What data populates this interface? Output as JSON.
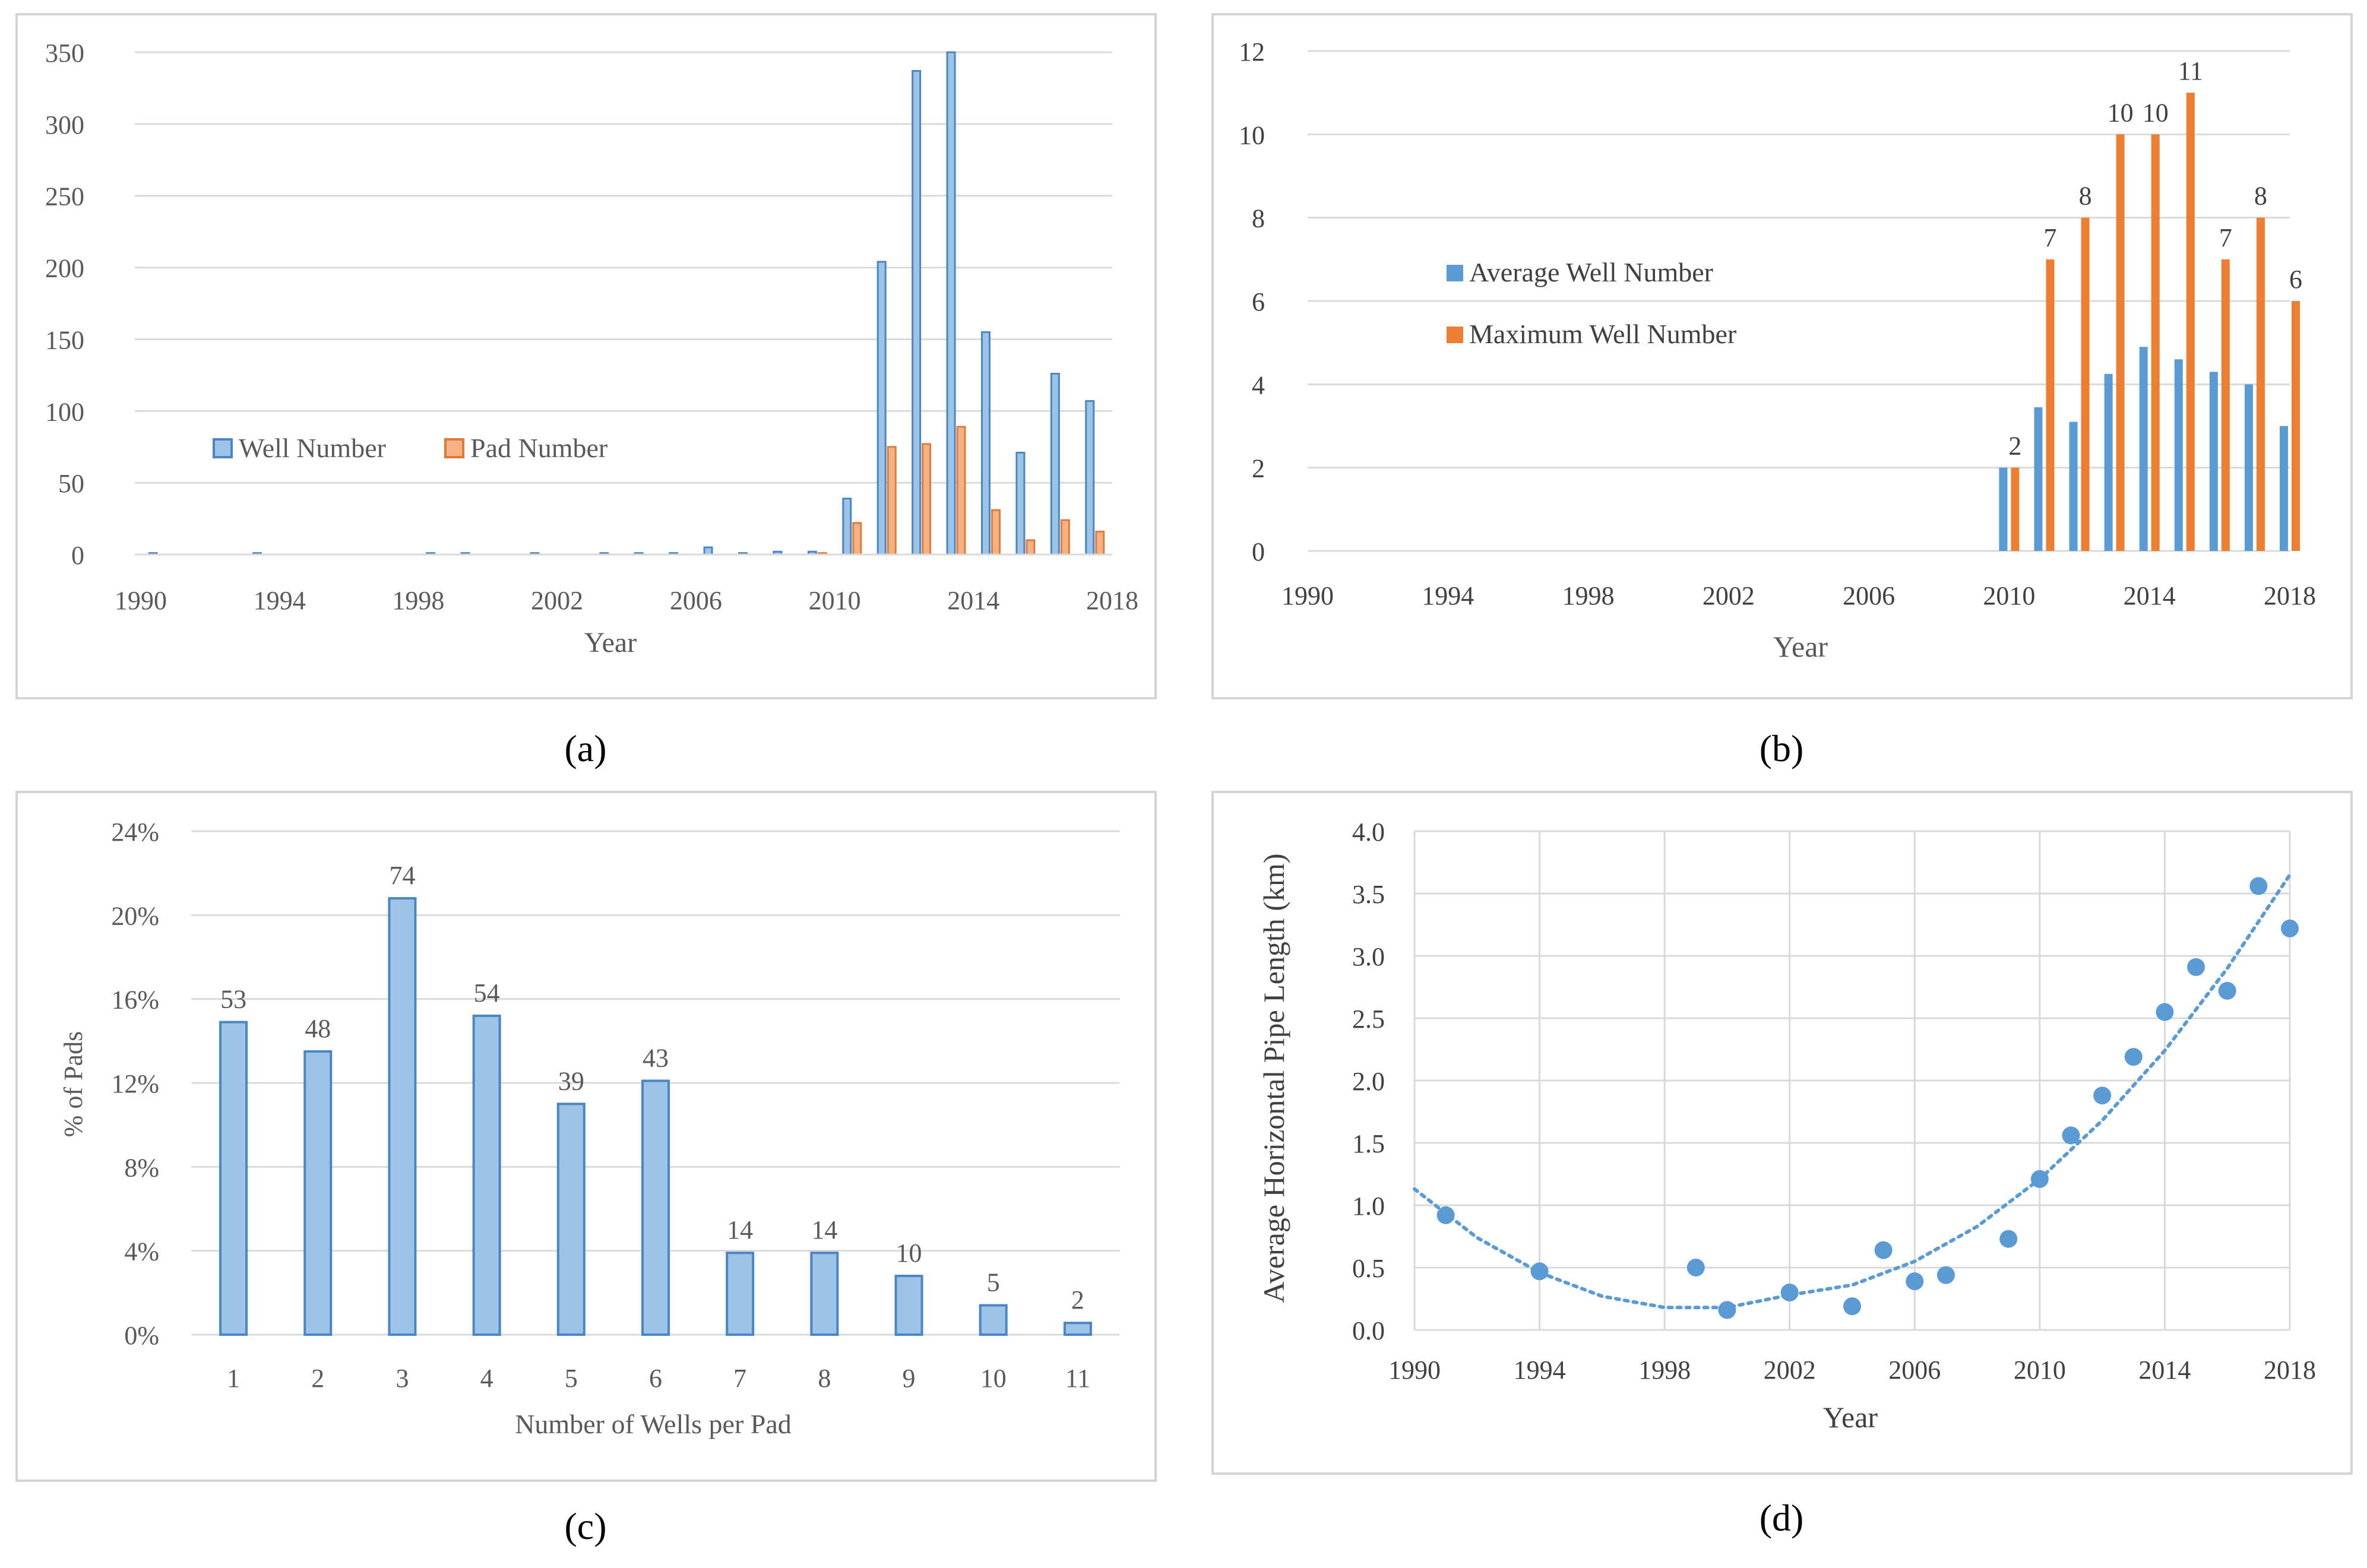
{
  "panel_labels": [
    "(a)",
    "(b)",
    "(c)",
    "(d)"
  ],
  "colors": {
    "blue_fill": "#9dc3e6",
    "blue_edge": "#4a86c5",
    "orange_fill": "#f4b183",
    "orange_edge": "#e07b39",
    "blue_solid": "#5b9bd5",
    "orange_solid": "#ed7d31",
    "grid": "#d9d9d9",
    "axis_text": "#595959"
  },
  "chart_data": [
    {
      "id": "a",
      "type": "bar",
      "title": "",
      "xlabel": "Year",
      "ylabel": "",
      "ylim": [
        0,
        350
      ],
      "yticks": [
        0,
        50,
        100,
        150,
        200,
        250,
        300,
        350
      ],
      "xticks": [
        1990,
        1994,
        1998,
        2002,
        2006,
        2010,
        2014,
        2018
      ],
      "categories": [
        1991,
        1992,
        1993,
        1994,
        1995,
        1996,
        1997,
        1998,
        1999,
        2000,
        2001,
        2002,
        2003,
        2004,
        2005,
        2006,
        2007,
        2008,
        2009,
        2010,
        2011,
        2012,
        2013,
        2014,
        2015,
        2016,
        2017,
        2018
      ],
      "legend": "left-middle",
      "series": [
        {
          "name": "Well Number",
          "values": [
            1,
            0,
            0,
            1,
            0,
            0,
            0,
            0,
            1,
            1,
            0,
            1,
            0,
            1,
            1,
            1,
            5,
            1,
            2,
            2,
            39,
            204,
            337,
            352,
            155,
            71,
            126,
            107
          ]
        },
        {
          "name": "Pad Number",
          "values": [
            0,
            0,
            0,
            0,
            0,
            0,
            0,
            0,
            0,
            0,
            0,
            0,
            0,
            0,
            0,
            0,
            0,
            0,
            0,
            1,
            22,
            75,
            77,
            89,
            31,
            10,
            24,
            16
          ]
        }
      ]
    },
    {
      "id": "b",
      "type": "bar",
      "title": "",
      "xlabel": "Year",
      "ylabel": "",
      "ylim": [
        0,
        12
      ],
      "yticks": [
        0,
        2,
        4,
        6,
        8,
        10,
        12
      ],
      "xticks": [
        1990,
        1994,
        1998,
        2002,
        2006,
        2010,
        2014,
        2018
      ],
      "categories": [
        2010,
        2011,
        2012,
        2013,
        2014,
        2015,
        2016,
        2017,
        2018
      ],
      "legend": "center",
      "series": [
        {
          "name": "Average Well Number",
          "values": [
            2,
            3.45,
            3.1,
            4.25,
            4.9,
            4.6,
            4.3,
            4.0,
            3.0
          ]
        },
        {
          "name": "Maximum Well Number",
          "values": [
            2,
            7,
            8,
            10,
            10,
            11,
            7,
            8,
            6
          ],
          "labels": [
            "2",
            "7",
            "8",
            "10",
            "10",
            "11",
            "7",
            "8",
            "6"
          ]
        }
      ]
    },
    {
      "id": "c",
      "type": "bar",
      "title": "",
      "xlabel": "Number of Wells per Pad",
      "ylabel": "% of Pads",
      "ylim": [
        0,
        24
      ],
      "yticks": [
        "0%",
        "4%",
        "8%",
        "12%",
        "16%",
        "20%",
        "24%"
      ],
      "categories": [
        "1",
        "2",
        "3",
        "4",
        "5",
        "6",
        "7",
        "8",
        "9",
        "10",
        "11"
      ],
      "values": [
        14.9,
        13.5,
        20.8,
        15.2,
        11.0,
        12.1,
        3.9,
        3.9,
        2.8,
        1.4,
        0.56
      ],
      "labels": [
        "53",
        "48",
        "74",
        "54",
        "39",
        "43",
        "14",
        "14",
        "10",
        "5",
        "2"
      ]
    },
    {
      "id": "d",
      "type": "scatter",
      "title": "",
      "xlabel": "Year",
      "ylabel": "Average Horizontal Pipe Length (km)",
      "xlim": [
        1990,
        2018
      ],
      "ylim": [
        0,
        4
      ],
      "yticks": [
        "0.0",
        "0.5",
        "1.0",
        "1.5",
        "2.0",
        "2.5",
        "3.0",
        "3.5",
        "4.0"
      ],
      "xticks": [
        1990,
        1994,
        1998,
        2002,
        2006,
        2010,
        2014,
        2018
      ],
      "x": [
        1991,
        1994,
        1999,
        2000,
        2002,
        2004,
        2005,
        2006,
        2007,
        2009,
        2010,
        2011,
        2012,
        2013,
        2014,
        2015,
        2016,
        2017,
        2018
      ],
      "y": [
        0.92,
        0.47,
        0.5,
        0.16,
        0.3,
        0.19,
        0.64,
        0.39,
        0.44,
        0.73,
        1.21,
        1.56,
        1.88,
        2.19,
        2.55,
        2.91,
        2.72,
        3.56,
        3.22
      ],
      "trendline": "polynomial",
      "trend_x": [
        1990,
        1992,
        1994,
        1996,
        1998,
        2000,
        2002,
        2004,
        2006,
        2008,
        2010,
        2012,
        2014,
        2016,
        2018
      ],
      "trend_y": [
        1.13,
        0.74,
        0.46,
        0.27,
        0.18,
        0.18,
        0.28,
        0.36,
        0.55,
        0.83,
        1.21,
        1.68,
        2.24,
        2.9,
        3.65
      ]
    }
  ]
}
